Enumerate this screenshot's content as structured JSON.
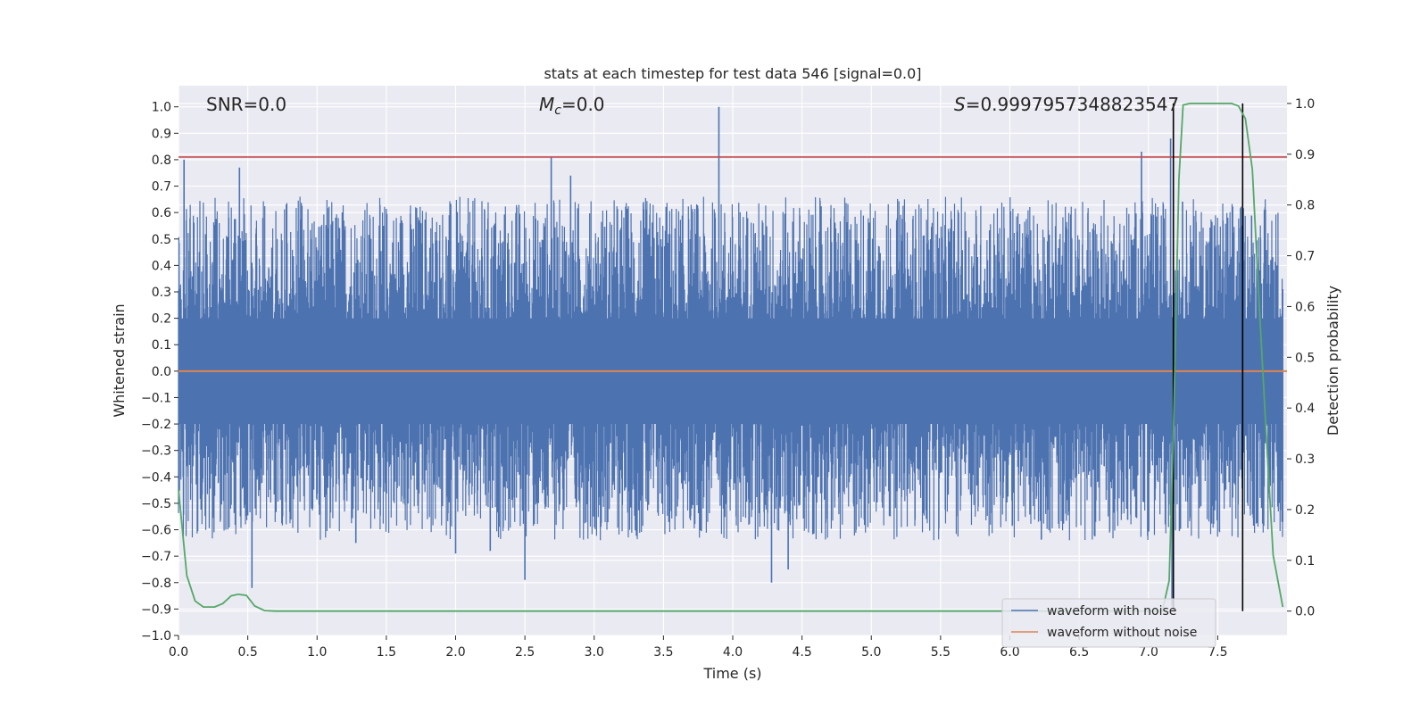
{
  "chart_data": {
    "type": "line",
    "title": "stats at each timestep for test data 546 [signal=0.0]",
    "xlabel": "Time (s)",
    "ylabel": "Whitened strain",
    "y2label": "Detection probability",
    "xlim": [
      0.0,
      8.0
    ],
    "ylim": [
      -1.0,
      1.08
    ],
    "y2lim": [
      -0.048,
      1.035
    ],
    "xticks": [
      0.0,
      0.5,
      1.0,
      1.5,
      2.0,
      2.5,
      3.0,
      3.5,
      4.0,
      4.5,
      5.0,
      5.5,
      6.0,
      6.5,
      7.0,
      7.5
    ],
    "xtick_labels": [
      "0.0",
      "0.5",
      "1.0",
      "1.5",
      "2.0",
      "2.5",
      "3.0",
      "3.5",
      "4.0",
      "4.5",
      "5.0",
      "5.5",
      "6.0",
      "6.5",
      "7.0",
      "7.5"
    ],
    "yticks": [
      -1.0,
      -0.9,
      -0.8,
      -0.7,
      -0.6,
      -0.5,
      -0.4,
      -0.3,
      -0.2,
      -0.1,
      0.0,
      0.1,
      0.2,
      0.3,
      0.4,
      0.5,
      0.6,
      0.7,
      0.8,
      0.9,
      1.0
    ],
    "ytick_labels": [
      "−1.0",
      "−0.9",
      "−0.8",
      "−0.7",
      "−0.6",
      "−0.5",
      "−0.4",
      "−0.3",
      "−0.2",
      "−0.1",
      "0.0",
      "0.1",
      "0.2",
      "0.3",
      "0.4",
      "0.5",
      "0.6",
      "0.7",
      "0.8",
      "0.9",
      "1.0"
    ],
    "y2ticks": [
      0.0,
      0.1,
      0.2,
      0.3,
      0.4,
      0.5,
      0.6,
      0.7,
      0.8,
      0.9,
      1.0
    ],
    "y2tick_labels": [
      "0.0",
      "0.1",
      "0.2",
      "0.3",
      "0.4",
      "0.5",
      "0.6",
      "0.7",
      "0.8",
      "0.9",
      "1.0"
    ],
    "grid": true,
    "annotations": {
      "snr": "SNR=0.0",
      "mc_symbol": "M",
      "mc_sub": "c",
      "mc_value": "=0.0",
      "s_symbol": "S",
      "s_value": "=0.9997957348823547"
    },
    "threshold": {
      "y": 0.81,
      "color": "#c44e52"
    },
    "vlines": {
      "x": [
        7.18,
        7.68
      ],
      "color": "#000000"
    },
    "series": [
      {
        "name": "waveform with noise",
        "color": "#4c72b0",
        "description": "dense whitened noise, samples mostly within ±0.4, spikes to ~±0.8",
        "spikes": [
          {
            "x": 0.04,
            "y": 0.8
          },
          {
            "x": 0.44,
            "y": 0.77
          },
          {
            "x": 0.53,
            "y": -0.82
          },
          {
            "x": 1.28,
            "y": -0.65
          },
          {
            "x": 2.0,
            "y": -0.69
          },
          {
            "x": 2.25,
            "y": -0.68
          },
          {
            "x": 2.5,
            "y": -0.79
          },
          {
            "x": 2.69,
            "y": 0.81
          },
          {
            "x": 2.83,
            "y": 0.74
          },
          {
            "x": 3.9,
            "y": 1.0
          },
          {
            "x": 4.28,
            "y": -0.8
          },
          {
            "x": 4.4,
            "y": -0.75
          },
          {
            "x": 6.95,
            "y": 0.83
          },
          {
            "x": 7.16,
            "y": 0.88
          },
          {
            "x": 7.17,
            "y": -0.89
          }
        ]
      },
      {
        "name": "waveform without noise",
        "color": "#dd8452",
        "x": [
          0.0,
          8.0
        ],
        "y": [
          0.0,
          0.0
        ]
      },
      {
        "name": "detection probability",
        "color": "#55a868",
        "axis": "right",
        "x": [
          0.0,
          0.06,
          0.12,
          0.18,
          0.26,
          0.32,
          0.38,
          0.43,
          0.49,
          0.55,
          0.62,
          0.7,
          1.0,
          6.9,
          7.1,
          7.15,
          7.18,
          7.22,
          7.25,
          7.3,
          7.35,
          7.6,
          7.65,
          7.7,
          7.75,
          7.8,
          7.85,
          7.9,
          7.97
        ],
        "y": [
          0.24,
          0.07,
          0.02,
          0.008,
          0.008,
          0.015,
          0.03,
          0.033,
          0.031,
          0.01,
          0.001,
          0.0,
          0.0,
          0.0,
          0.0,
          0.06,
          0.35,
          0.85,
          0.997,
          1.0,
          1.0,
          1.0,
          0.995,
          0.97,
          0.87,
          0.6,
          0.35,
          0.11,
          0.008
        ]
      }
    ],
    "legend": {
      "placement": "lower-right",
      "entries": [
        {
          "label": "waveform with noise",
          "color": "#4c72b0"
        },
        {
          "label": "waveform without noise",
          "color": "#dd8452"
        }
      ]
    },
    "colors": {
      "background": "#eaeaf2",
      "grid": "#ffffff"
    }
  }
}
